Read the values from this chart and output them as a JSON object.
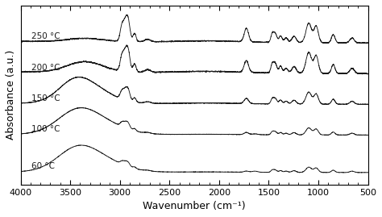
{
  "xlabel": "Wavenumber (cm⁻¹)",
  "ylabel": "Absorbance (a.u.)",
  "xlim": [
    4000,
    500
  ],
  "xticks": [
    4000,
    3500,
    3000,
    2500,
    2000,
    1500,
    1000,
    500
  ],
  "xticklabels": [
    "4000",
    "3500",
    "3000",
    "2500",
    "2000",
    "1500",
    "1000",
    "500"
  ],
  "labels": [
    "250 °C",
    "200 °C",
    "150 °C",
    "100 °C",
    "60 °C"
  ],
  "temps": [
    250,
    200,
    150,
    100,
    60
  ],
  "offsets": [
    0.88,
    0.7,
    0.52,
    0.34,
    0.12
  ],
  "line_color": "#1a1a1a",
  "background_color": "#ffffff",
  "label_fontsize": 7.5,
  "axis_fontsize": 9,
  "tick_fontsize": 8,
  "linewidth": 0.65,
  "noise_level": 0.0015
}
